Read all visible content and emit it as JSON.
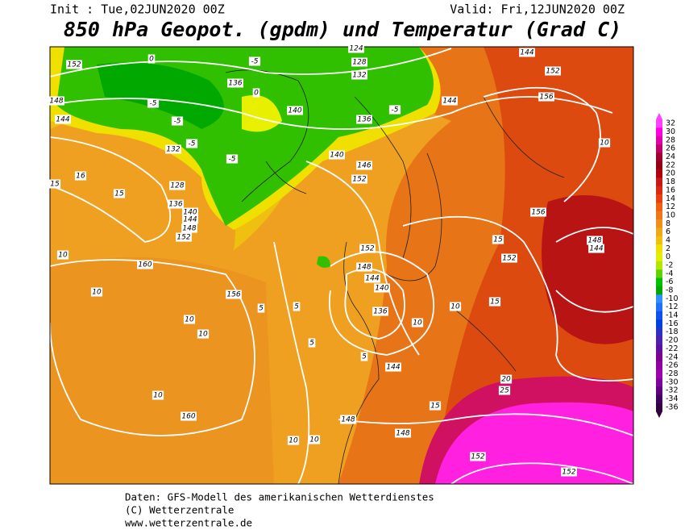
{
  "header": {
    "init": "Init : Tue,02JUN2020 00Z",
    "valid": "Valid: Fri,12JUN2020 00Z",
    "title": "850 hPa Geopot. (gpdm) und Temperatur (Grad C)"
  },
  "color_scale": {
    "levels": [
      32,
      30,
      28,
      26,
      24,
      22,
      20,
      18,
      16,
      14,
      12,
      10,
      8,
      6,
      4,
      2,
      0,
      -2,
      -4,
      -6,
      -8,
      -10,
      -12,
      -14,
      -16,
      -18,
      -20,
      -22,
      -24,
      -26,
      -28,
      -30,
      -32,
      -34,
      -36
    ],
    "colors": [
      "#ff40ff",
      "#ff00e0",
      "#e000a8",
      "#c00068",
      "#a00030",
      "#900010",
      "#b00010",
      "#c81818",
      "#dc2810",
      "#e84010",
      "#f06010",
      "#f07818",
      "#f09018",
      "#f0a818",
      "#f0c010",
      "#f0e000",
      "#e0f000",
      "#b4e600",
      "#60d200",
      "#00c000",
      "#00a800",
      "#3090ff",
      "#2070ff",
      "#1050f0",
      "#0040e0",
      "#3030c0",
      "#5020b0",
      "#6010a0",
      "#800090",
      "#9000a0",
      "#a000b0",
      "#8000a0",
      "#600080",
      "#400060",
      "#300040"
    ]
  },
  "contour_labels": [
    "152",
    "0",
    "124",
    "128",
    "132",
    "144",
    "152",
    "156",
    "148",
    "144",
    "136",
    "0",
    "140",
    "136",
    "144",
    "140",
    "146",
    "152",
    "10",
    "156",
    "132",
    "128",
    "136",
    "140",
    "144",
    "148",
    "152",
    "10",
    "160",
    "156",
    "10",
    "10",
    "10",
    "152",
    "148",
    "144",
    "140",
    "136",
    "10",
    "15",
    "152",
    "15",
    "148",
    "144",
    "10",
    "160",
    "5",
    "5",
    "5",
    "10",
    "5",
    "144",
    "15",
    "148",
    "148",
    "20",
    "25",
    "152",
    "152",
    "10",
    "10",
    "-5",
    "-5",
    "-5",
    "-5",
    "-5",
    "-5",
    "15",
    "15",
    "16"
  ],
  "footer": [
    "Daten: GFS-Modell des amerikanischen Wetterdienstes",
    "(C) Wetterzentrale",
    "www.wetterzentrale.de"
  ]
}
